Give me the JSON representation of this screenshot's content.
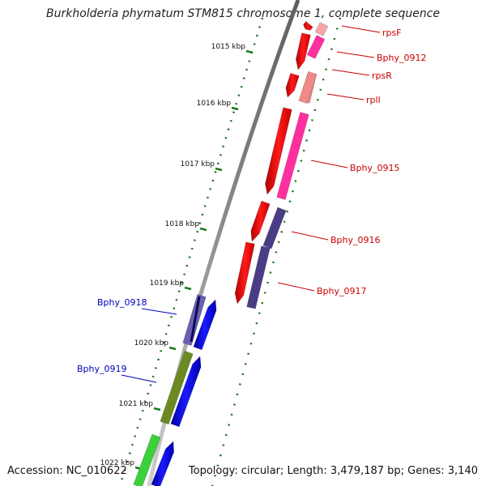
{
  "title": "Burkholderia phymatum STM815 chromosome 1, complete sequence",
  "footer": {
    "accession": "Accession: NC_010622",
    "topology": "Topology: circular; Length: 3,479,187 bp; Genes: 3,140"
  },
  "colors": {
    "backbone": "#8a8a8a",
    "tick": "#1a7a1a",
    "forward_label": "#cc0000",
    "reverse_label": "#0000bb"
  },
  "ticks": [
    {
      "label": "1015 kbp"
    },
    {
      "label": "1016 kbp"
    },
    {
      "label": "1017 kbp"
    },
    {
      "label": "1018 kbp"
    },
    {
      "label": "1019 kbp"
    },
    {
      "label": "1020 kbp"
    },
    {
      "label": "1021 kbp"
    },
    {
      "label": "1022 kbp"
    }
  ],
  "genes_forward": [
    {
      "name": "rpsF",
      "color": "#f7a6a6"
    },
    {
      "name": "Bphy_0912",
      "color": "#ff2fa0"
    },
    {
      "name": "rpsR",
      "color": "#f08a8a"
    },
    {
      "name": "rplI",
      "color": "#f08a8a"
    },
    {
      "name": "Bphy_0915",
      "color": "#ff2fa0"
    },
    {
      "name": "Bphy_0916",
      "color": "#4a3d86"
    },
    {
      "name": "Bphy_0917",
      "color": "#4a3d86"
    }
  ],
  "genes_reverse": [
    {
      "name": "Bphy_0918",
      "color": "#6a5fb0"
    },
    {
      "name": "Bphy_0919",
      "color": "#6b8a22"
    },
    {
      "name": "",
      "color": "#3ad13a"
    }
  ]
}
